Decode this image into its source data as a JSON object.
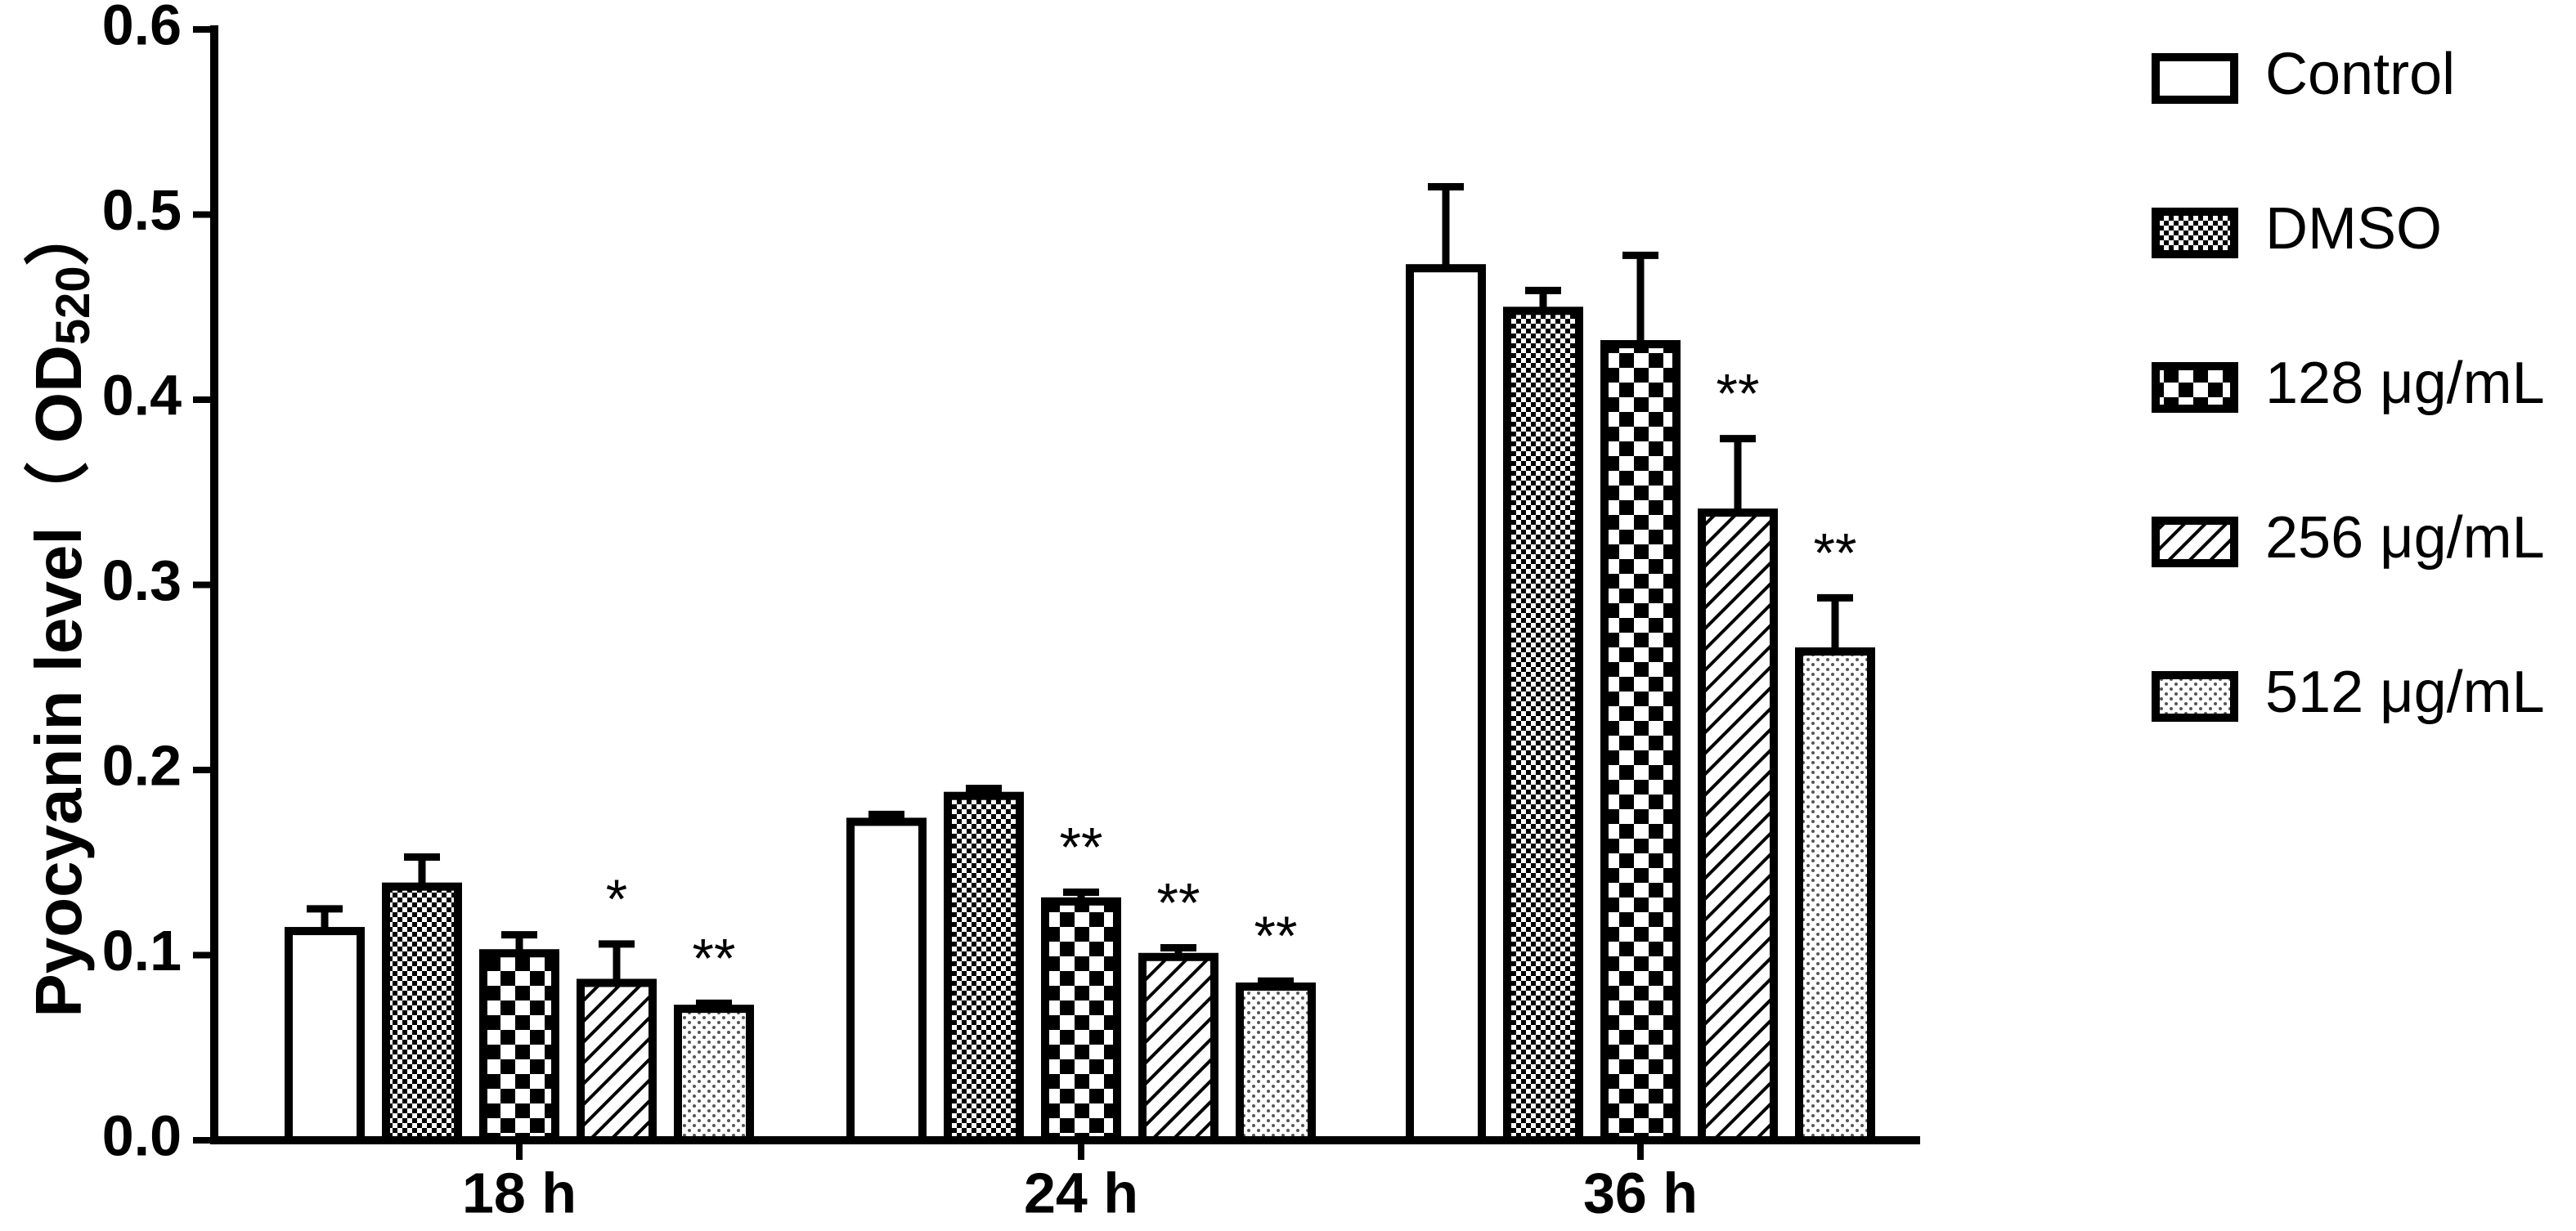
{
  "chart_data": {
    "type": "bar",
    "ylabel": "Pyocyanin level（ OD",
    "ylabel_sub": "520",
    "ylabel_end": "）",
    "categories": [
      "18 h",
      "24 h",
      "36 h"
    ],
    "ylim": [
      0,
      0.6
    ],
    "yticks": [
      {
        "value": 0,
        "label": "0.0"
      },
      0.1,
      0.2,
      0.3,
      0.4,
      0.5,
      0.6
    ],
    "grid": false,
    "legend": "right",
    "series": [
      {
        "name": "Control",
        "color": "#000000",
        "pattern": "none",
        "values": [
          0.113,
          0.172,
          0.471
        ],
        "errors": [
          0.012,
          0.004,
          0.044
        ],
        "annotations": [
          null,
          null,
          null
        ]
      },
      {
        "name": "DMSO",
        "color": "#000000",
        "pattern": "fine-check",
        "values": [
          0.137,
          0.186,
          0.448
        ],
        "errors": [
          0.016,
          0.004,
          0.011
        ],
        "annotations": [
          null,
          null,
          null
        ]
      },
      {
        "name": "128 μg/mL",
        "color": "#000000",
        "pattern": "check",
        "values": [
          0.101,
          0.129,
          0.43
        ],
        "errors": [
          0.01,
          0.005,
          0.048
        ],
        "annotations": [
          null,
          "**",
          null
        ]
      },
      {
        "name": "256 μg/mL",
        "color": "#000000",
        "pattern": "hatch",
        "values": [
          0.085,
          0.099,
          0.339
        ],
        "errors": [
          0.021,
          0.005,
          0.04
        ],
        "annotations": [
          "*",
          "**",
          "**"
        ]
      },
      {
        "name": "512 μg/mL",
        "color": "#000000",
        "pattern": "dots",
        "values": [
          0.071,
          0.083,
          0.264
        ],
        "errors": [
          0.003,
          0.003,
          0.029
        ],
        "annotations": [
          "**",
          "**",
          "**"
        ]
      }
    ]
  }
}
